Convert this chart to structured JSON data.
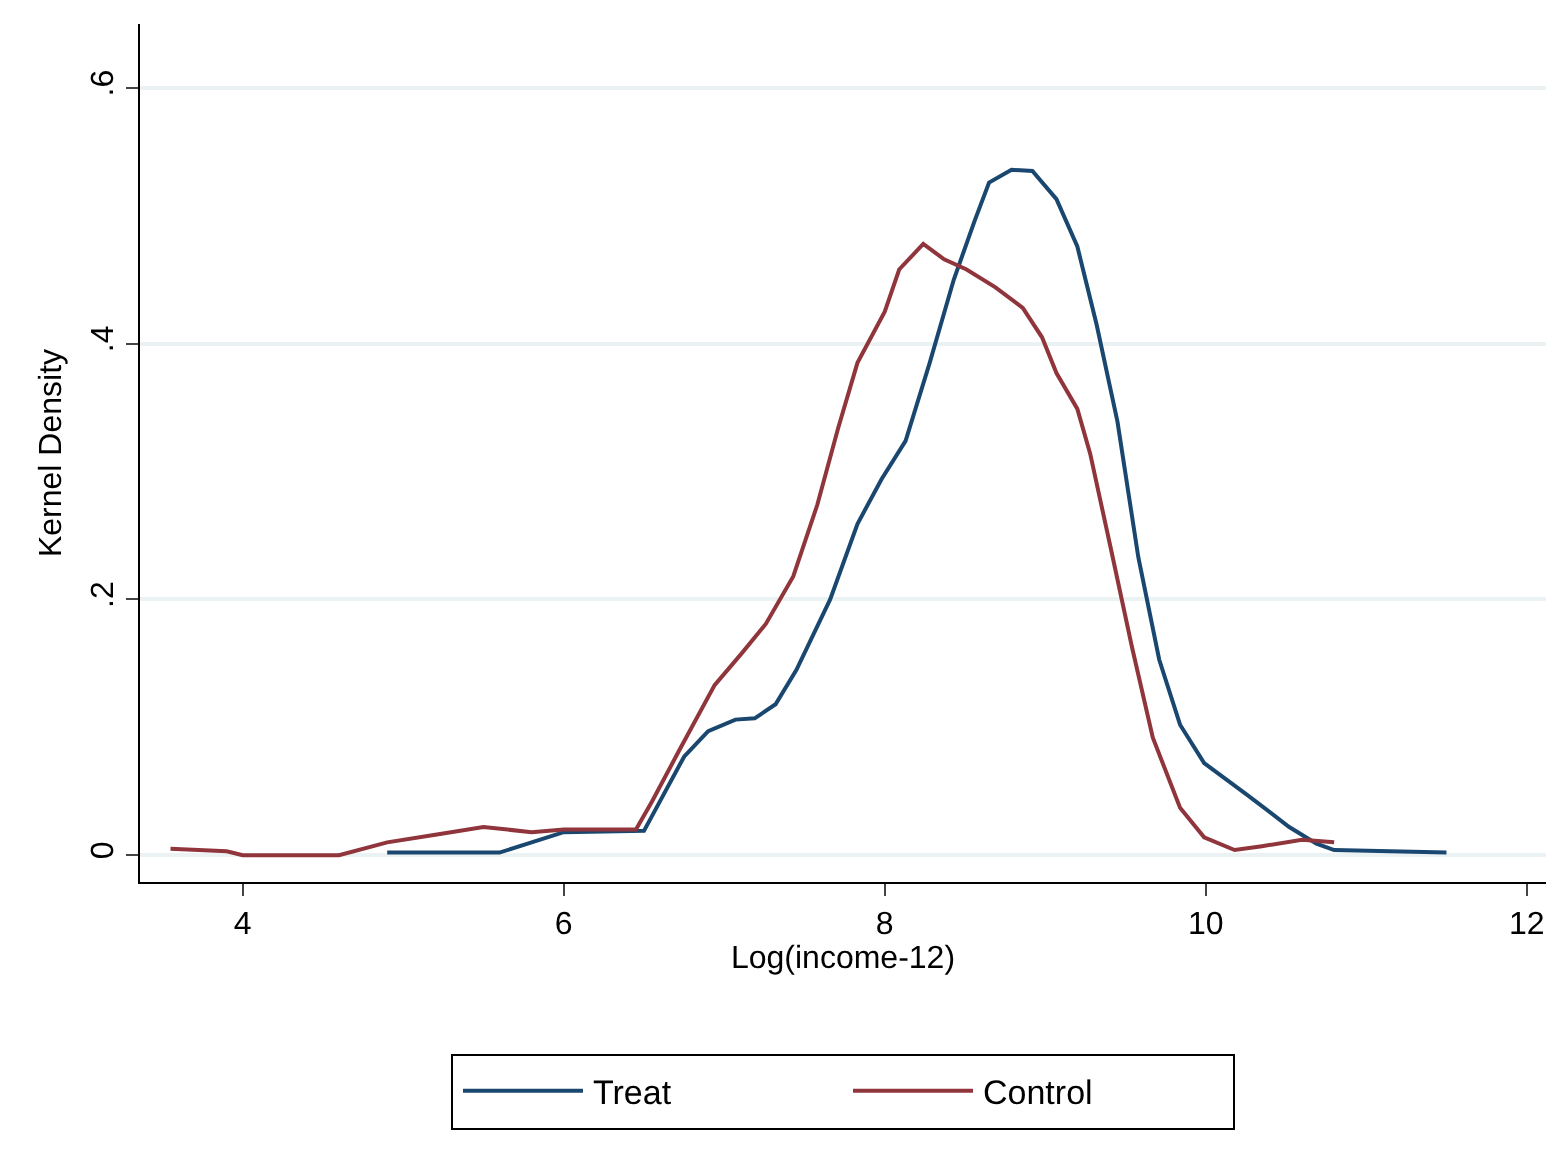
{
  "chart_data": {
    "type": "line",
    "xlabel": "Log(income-12)",
    "ylabel": "Kernel Density",
    "xlim": [
      3.36,
      12.12
    ],
    "xticks": [
      4,
      6,
      8,
      10,
      12
    ],
    "ylim": [
      -0.021,
      0.65
    ],
    "yticks": [
      {
        "value": 0,
        "label": "0"
      },
      {
        "value": 0.2,
        "label": ".2"
      },
      {
        "value": 0.4,
        "label": ".4"
      },
      {
        "value": 0.6,
        "label": ".6"
      }
    ],
    "grid": "y",
    "legend": "bottom",
    "marker": "none",
    "line_style": "solid",
    "series": [
      {
        "name": "Treat",
        "color": "#1a476f",
        "x": [
          4.9,
          5.6,
          5.8,
          6.0,
          6.5,
          6.75,
          6.9,
          7.07,
          7.19,
          7.32,
          7.45,
          7.66,
          7.83,
          7.98,
          8.13,
          8.28,
          8.43,
          8.56,
          8.65,
          8.79,
          8.92,
          9.07,
          9.2,
          9.32,
          9.45,
          9.58,
          9.71,
          9.84,
          9.99,
          10.26,
          10.52,
          10.69,
          10.8,
          11.5
        ],
        "values": [
          0.002,
          0.002,
          0.01,
          0.018,
          0.019,
          0.077,
          0.097,
          0.106,
          0.107,
          0.118,
          0.145,
          0.2,
          0.259,
          0.294,
          0.324,
          0.385,
          0.45,
          0.496,
          0.526,
          0.536,
          0.535,
          0.513,
          0.476,
          0.415,
          0.339,
          0.233,
          0.153,
          0.102,
          0.072,
          0.047,
          0.022,
          0.009,
          0.004,
          0.002
        ]
      },
      {
        "name": "Control",
        "color": "#90353b",
        "x": [
          3.55,
          3.9,
          4.0,
          4.6,
          4.9,
          5.2,
          5.5,
          5.8,
          6.0,
          6.45,
          6.55,
          6.72,
          6.94,
          7.11,
          7.26,
          7.43,
          7.58,
          7.71,
          7.83,
          8.0,
          8.09,
          8.24,
          8.37,
          8.51,
          8.69,
          8.86,
          8.98,
          9.07,
          9.2,
          9.28,
          9.41,
          9.54,
          9.67,
          9.84,
          9.99,
          10.18,
          10.35,
          10.6,
          10.8
        ],
        "values": [
          0.005,
          0.003,
          0.0,
          0.0,
          0.01,
          0.016,
          0.022,
          0.018,
          0.02,
          0.02,
          0.042,
          0.082,
          0.133,
          0.158,
          0.181,
          0.218,
          0.274,
          0.334,
          0.385,
          0.425,
          0.458,
          0.478,
          0.466,
          0.458,
          0.444,
          0.428,
          0.405,
          0.377,
          0.349,
          0.314,
          0.239,
          0.163,
          0.092,
          0.037,
          0.014,
          0.004,
          0.007,
          0.012,
          0.01
        ]
      }
    ]
  }
}
